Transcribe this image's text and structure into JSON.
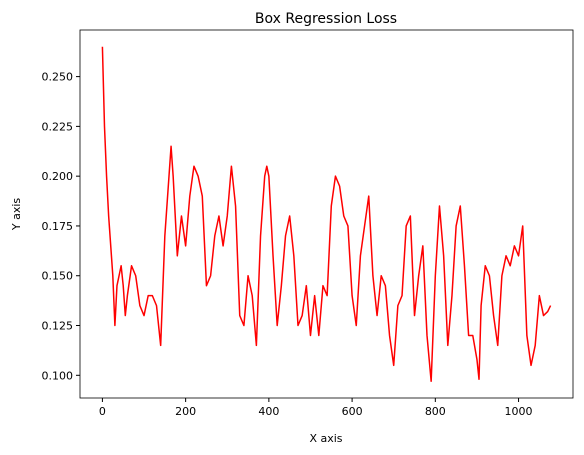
{
  "chart_data": {
    "type": "line",
    "title": "Box Regression Loss",
    "xlabel": "X axis",
    "ylabel": "Y axis",
    "x": [
      0,
      5,
      10,
      15,
      20,
      25,
      30,
      35,
      40,
      45,
      50,
      55,
      60,
      70,
      80,
      90,
      100,
      110,
      120,
      130,
      140,
      150,
      160,
      165,
      170,
      180,
      190,
      200,
      210,
      220,
      230,
      240,
      250,
      260,
      270,
      280,
      290,
      300,
      310,
      320,
      330,
      340,
      350,
      360,
      370,
      380,
      390,
      395,
      400,
      410,
      420,
      430,
      440,
      450,
      460,
      470,
      480,
      490,
      500,
      510,
      520,
      530,
      540,
      550,
      560,
      570,
      580,
      590,
      600,
      610,
      620,
      630,
      640,
      650,
      660,
      670,
      680,
      690,
      700,
      710,
      720,
      730,
      740,
      750,
      760,
      770,
      780,
      790,
      800,
      810,
      820,
      830,
      840,
      850,
      860,
      870,
      880,
      890,
      900,
      905,
      910,
      920,
      930,
      940,
      950,
      960,
      970,
      980,
      990,
      1000,
      1010,
      1020,
      1030,
      1040,
      1050,
      1060,
      1070,
      1077
    ],
    "series": [
      {
        "name": "Box Regression Loss",
        "color": "#ff0000",
        "values": [
          0.265,
          0.225,
          0.2,
          0.18,
          0.165,
          0.15,
          0.125,
          0.145,
          0.15,
          0.155,
          0.145,
          0.13,
          0.14,
          0.155,
          0.15,
          0.135,
          0.13,
          0.14,
          0.14,
          0.135,
          0.115,
          0.17,
          0.2,
          0.215,
          0.2,
          0.16,
          0.18,
          0.165,
          0.19,
          0.205,
          0.2,
          0.19,
          0.145,
          0.15,
          0.17,
          0.18,
          0.165,
          0.18,
          0.205,
          0.185,
          0.13,
          0.125,
          0.15,
          0.14,
          0.115,
          0.17,
          0.2,
          0.205,
          0.2,
          0.16,
          0.125,
          0.145,
          0.17,
          0.18,
          0.16,
          0.125,
          0.13,
          0.145,
          0.12,
          0.14,
          0.12,
          0.145,
          0.14,
          0.185,
          0.2,
          0.195,
          0.18,
          0.175,
          0.14,
          0.125,
          0.16,
          0.175,
          0.19,
          0.15,
          0.13,
          0.15,
          0.145,
          0.12,
          0.105,
          0.135,
          0.14,
          0.175,
          0.18,
          0.13,
          0.15,
          0.165,
          0.12,
          0.097,
          0.15,
          0.185,
          0.16,
          0.115,
          0.14,
          0.175,
          0.185,
          0.155,
          0.12,
          0.12,
          0.108,
          0.098,
          0.135,
          0.155,
          0.15,
          0.13,
          0.115,
          0.15,
          0.16,
          0.155,
          0.165,
          0.16,
          0.175,
          0.12,
          0.105,
          0.115,
          0.14,
          0.13,
          0.132,
          0.135
        ]
      }
    ],
    "xlim": [
      -53.85,
      1130.85
    ],
    "xticks": [
      0,
      200,
      400,
      600,
      800,
      1000
    ],
    "ylim": [
      0.0886,
      0.2734
    ],
    "yticks": [
      {
        "value": 0.1,
        "label": "0.100"
      },
      {
        "value": 0.125,
        "label": "0.125"
      },
      {
        "value": 0.15,
        "label": "0.150"
      },
      {
        "value": 0.175,
        "label": "0.175"
      },
      {
        "value": 0.2,
        "label": "0.200"
      },
      {
        "value": 0.225,
        "label": "0.225"
      },
      {
        "value": 0.25,
        "label": "0.250"
      }
    ],
    "grid": false
  }
}
